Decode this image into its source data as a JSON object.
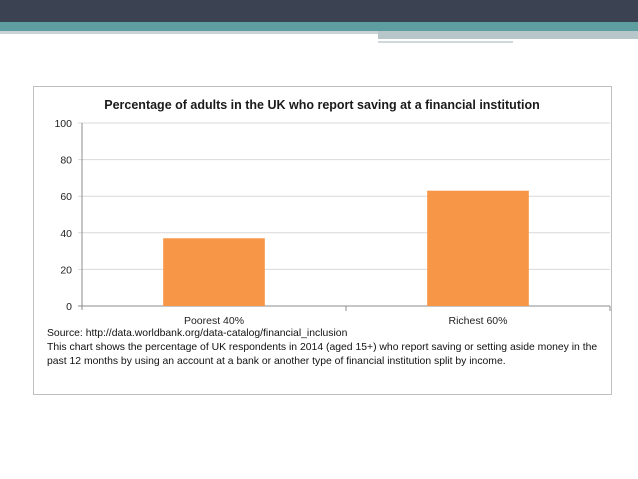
{
  "chart_data": {
    "type": "bar",
    "title": "Percentage of adults in the UK who report saving at a financial institution",
    "categories": [
      "Poorest 40%",
      "Richest 60%"
    ],
    "values": [
      37,
      63
    ],
    "ylim": [
      0,
      100
    ],
    "yticks": [
      0,
      20,
      40,
      60,
      80,
      100
    ],
    "xlabel": "",
    "ylabel": "",
    "grid": true,
    "bar_color": "#f79646"
  },
  "caption": {
    "source": "Source: http://data.worldbank.org/data-catalog/financial_inclusion",
    "description": "This chart shows the percentage of UK respondents in 2014 (aged 15+) who report saving or setting aside money in the past 12 months by using an account at a bank or another type of financial institution split by income."
  }
}
